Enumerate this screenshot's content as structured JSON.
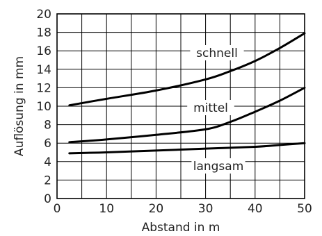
{
  "chart_data": {
    "type": "line",
    "xlabel": "Abstand in m",
    "ylabel": "Auflösung in mm",
    "xlim": [
      0,
      50
    ],
    "ylim": [
      0,
      20
    ],
    "x_ticks": [
      0,
      10,
      20,
      30,
      40,
      50
    ],
    "y_ticks": [
      0,
      2,
      4,
      6,
      8,
      10,
      12,
      14,
      16,
      18,
      20
    ],
    "grid": true,
    "series": [
      {
        "name": "schnell",
        "x": [
          2.5,
          10,
          20,
          30,
          35,
          40,
          45,
          50
        ],
        "y": [
          10.1,
          10.8,
          11.7,
          12.9,
          13.8,
          14.9,
          16.3,
          17.9
        ]
      },
      {
        "name": "mittel",
        "x": [
          2.5,
          10,
          20,
          30,
          35,
          40,
          45,
          50
        ],
        "y": [
          6.1,
          6.4,
          6.9,
          7.5,
          8.3,
          9.4,
          10.6,
          12.0
        ]
      },
      {
        "name": "langsam",
        "x": [
          2.5,
          10,
          20,
          30,
          40,
          45,
          50
        ],
        "y": [
          4.9,
          5.0,
          5.2,
          5.4,
          5.6,
          5.8,
          6.0
        ]
      }
    ]
  }
}
